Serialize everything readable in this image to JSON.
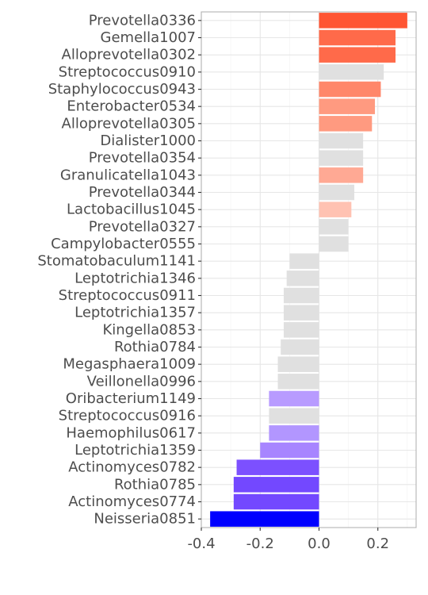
{
  "chart_data": {
    "type": "bar",
    "orientation": "horizontal",
    "title": "",
    "xlabel": "",
    "ylabel": "",
    "xlim": [
      -0.4,
      0.33
    ],
    "grid": true,
    "legend": "none",
    "x_ticks": [
      "-0.4",
      "-0.2",
      "0.0",
      "0.2"
    ],
    "x_tick_values": [
      -0.4,
      -0.2,
      0.0,
      0.2
    ],
    "categories": [
      "Prevotella0336",
      "Gemella1007",
      "Alloprevotella0302",
      "Streptococcus0910",
      "Staphylococcus0943",
      "Enterobacter0534",
      "Alloprevotella0305",
      "Dialister1000",
      "Prevotella0354",
      "Granulicatella1043",
      "Prevotella0344",
      "Lactobacillus1045",
      "Prevotella0327",
      "Campylobacter0555",
      "Stomatobaculum1141",
      "Leptotrichia1346",
      "Streptococcus0911",
      "Leptotrichia1357",
      "Kingella0853",
      "Rothia0784",
      "Megasphaera1009",
      "Veillonella0996",
      "Oribacterium1149",
      "Streptococcus0916",
      "Haemophilus0617",
      "Leptotrichia1359",
      "Actinomyces0782",
      "Rothia0785",
      "Actinomyces0774",
      "Neisseria0851"
    ],
    "values": [
      0.3,
      0.26,
      0.26,
      0.22,
      0.21,
      0.19,
      0.18,
      0.15,
      0.15,
      0.15,
      0.12,
      0.11,
      0.1,
      0.1,
      -0.1,
      -0.11,
      -0.12,
      -0.12,
      -0.12,
      -0.13,
      -0.14,
      -0.14,
      -0.17,
      -0.17,
      -0.17,
      -0.2,
      -0.28,
      -0.29,
      -0.29,
      -0.37
    ],
    "colors": [
      "#ff5533",
      "#ff6a4a",
      "#ff6a4a",
      "#e0e0e0",
      "#ff876a",
      "#ff9a80",
      "#ff9a80",
      "#e0e0e0",
      "#e0e0e0",
      "#ffa994",
      "#e0e0e0",
      "#ffc2b2",
      "#e0e0e0",
      "#e0e0e0",
      "#e0e0e0",
      "#e0e0e0",
      "#e0e0e0",
      "#e0e0e0",
      "#e0e0e0",
      "#e0e0e0",
      "#e0e0e0",
      "#e0e0e0",
      "#b89bff",
      "#e0e0e0",
      "#b296ff",
      "#a785ff",
      "#7c50ff",
      "#7348ff",
      "#7348ff",
      "#0000ff"
    ],
    "style": {
      "panel_border": "#b3b3b3",
      "grid_major": "#e6e6e6",
      "grid_minor": "#f2f2f2",
      "tick_color": "#4d4d4d"
    }
  }
}
